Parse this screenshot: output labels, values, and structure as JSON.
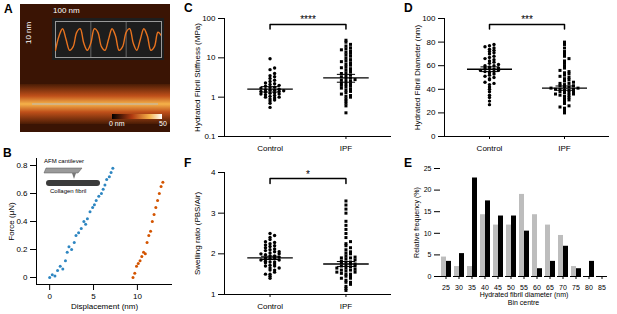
{
  "chart_data": [
    {
      "type": "image",
      "title": "A",
      "xlabel": "100 nm",
      "ylabel": "10 nm",
      "x": [
        0,
        10,
        20,
        30,
        40,
        50,
        60,
        70,
        80,
        90,
        100,
        110,
        120,
        130,
        140,
        150,
        160,
        170,
        180,
        190,
        200,
        210,
        220,
        230,
        240,
        250,
        260,
        270,
        280,
        290,
        300
      ],
      "values": [
        2,
        6,
        8,
        5,
        2,
        3,
        7,
        8,
        4,
        2,
        4,
        8,
        7,
        3,
        2,
        5,
        8,
        6,
        2,
        3,
        7,
        8,
        4,
        2,
        5,
        8,
        6,
        2,
        3,
        7,
        6
      ],
      "color": "#e8731f",
      "xlim": [
        0,
        300
      ],
      "ylim": [
        0,
        10
      ],
      "xticks": [
        0,
        100,
        200,
        300
      ],
      "yticks": [
        0,
        10
      ],
      "grid": true,
      "tick_labels": false,
      "colorbar": {
        "range": [
          0,
          50
        ],
        "ticks": [
          {
            "value": 0,
            "label": "0 nm"
          },
          50
        ]
      }
    },
    {
      "type": "scatter",
      "title": "B",
      "xlabel": "Displacement (nm)",
      "ylabel": "Force (μN)",
      "xlim": [
        -1.5,
        14
      ],
      "ylim": [
        -0.05,
        0.85
      ],
      "xticks": [
        0,
        5,
        10
      ],
      "yticks": [
        0,
        0.2,
        0.4,
        0.6,
        0.8
      ],
      "annotations": [
        "AFM cantilever",
        "Collagen fibril"
      ],
      "series": [
        {
          "color": "#2e86c1",
          "marker": "circle",
          "x": [
            0,
            0.3,
            0.6,
            0.9,
            1.2,
            1.5,
            1.8,
            2.0,
            2.2,
            2.5,
            2.8,
            3.0,
            3.3,
            3.6,
            3.9,
            4.1,
            4.3,
            4.6,
            4.9,
            5.1,
            5.3,
            5.6,
            5.9,
            6.1,
            6.3,
            6.5,
            6.8,
            7.0,
            7.2
          ],
          "values": [
            0.0,
            0.02,
            0.01,
            0.05,
            0.08,
            0.06,
            0.12,
            0.18,
            0.22,
            0.2,
            0.25,
            0.3,
            0.32,
            0.35,
            0.4,
            0.38,
            0.42,
            0.47,
            0.5,
            0.52,
            0.55,
            0.58,
            0.6,
            0.63,
            0.66,
            0.7,
            0.72,
            0.75,
            0.78
          ]
        },
        {
          "color": "#d35400",
          "marker": "circle",
          "x": [
            9.5,
            9.7,
            9.9,
            10.1,
            10.3,
            10.5,
            10.7,
            10.9,
            11.1,
            11.3,
            11.5,
            11.7,
            11.9,
            12.1,
            12.3,
            12.5,
            12.7,
            12.9
          ],
          "values": [
            0.0,
            0.03,
            0.08,
            0.1,
            0.12,
            0.15,
            0.18,
            0.17,
            0.25,
            0.3,
            0.33,
            0.4,
            0.45,
            0.5,
            0.55,
            0.6,
            0.65,
            0.68
          ]
        }
      ]
    },
    {
      "type": "strip",
      "title": "C",
      "ylabel": "Hydrated Fibril Stiffness (MPa)",
      "log": "y",
      "ylim": [
        0.1,
        100
      ],
      "yticks": [
        0.1,
        1,
        10,
        100
      ],
      "annotations": [
        "****"
      ],
      "series": [
        {
          "name": "Control",
          "marker": "circle",
          "color": "#000000",
          "mean": 1.6,
          "error": 0.25,
          "values": [
            0.55,
            0.7,
            0.8,
            0.85,
            0.9,
            0.95,
            1.0,
            1.0,
            1.05,
            1.1,
            1.15,
            1.2,
            1.2,
            1.25,
            1.3,
            1.35,
            1.4,
            1.4,
            1.45,
            1.5,
            1.5,
            1.55,
            1.6,
            1.7,
            1.75,
            1.8,
            1.9,
            2.0,
            2.1,
            2.2,
            2.3,
            2.5,
            2.7,
            3.0,
            3.3,
            3.5,
            4.0,
            5.0,
            5.5,
            9.5
          ]
        },
        {
          "name": "IPF",
          "marker": "square",
          "color": "#000000",
          "mean": 3.1,
          "error": 0.7,
          "values": [
            0.6,
            0.7,
            0.8,
            0.9,
            1.0,
            1.05,
            1.1,
            1.2,
            1.3,
            1.4,
            1.5,
            1.6,
            1.7,
            1.8,
            1.9,
            2.0,
            2.1,
            2.2,
            2.3,
            2.5,
            2.6,
            2.7,
            2.8,
            3.0,
            3.1,
            3.3,
            3.5,
            3.7,
            4.0,
            4.2,
            4.5,
            5.0,
            5.3,
            5.6,
            6.0,
            6.5,
            7.0,
            7.5,
            8.0,
            8.5,
            9.0,
            10,
            11,
            12,
            13,
            14,
            15,
            16,
            17,
            18,
            20,
            22,
            25,
            28,
            0.4
          ]
        }
      ]
    },
    {
      "type": "strip",
      "title": "D",
      "ylabel": "Hydrated Fibril Diameter (nm)",
      "ylim": [
        0,
        100
      ],
      "yticks": [
        0,
        20,
        40,
        60,
        80,
        100
      ],
      "annotations": [
        "***"
      ],
      "series": [
        {
          "name": "Control",
          "marker": "circle",
          "color": "#000000",
          "mean": 57,
          "error": 2,
          "values": [
            27,
            30,
            33,
            35,
            38,
            40,
            42,
            44,
            45,
            46,
            48,
            49,
            50,
            51,
            52,
            53,
            54,
            55,
            55,
            56,
            56,
            57,
            57,
            58,
            58,
            59,
            60,
            60,
            61,
            62,
            63,
            64,
            65,
            66,
            67,
            68,
            70,
            71,
            72,
            73,
            74,
            75,
            76,
            77,
            78
          ]
        },
        {
          "name": "IPF",
          "marker": "square",
          "color": "#000000",
          "mean": 41,
          "error": 1.8,
          "values": [
            20,
            22,
            24,
            26,
            28,
            30,
            31,
            32,
            33,
            34,
            35,
            35,
            36,
            36,
            37,
            37,
            38,
            38,
            39,
            39,
            40,
            40,
            40,
            41,
            41,
            42,
            42,
            43,
            43,
            44,
            45,
            45,
            46,
            47,
            48,
            49,
            50,
            51,
            52,
            53,
            54,
            55,
            56,
            58,
            60,
            62,
            64,
            66,
            68,
            70,
            72,
            75,
            78,
            80,
            25
          ]
        }
      ]
    },
    {
      "type": "strip",
      "title": "F",
      "ylabel": "Swelling ratio (PBS/Air)",
      "ylim": [
        1,
        4
      ],
      "yticks": [
        1,
        2,
        3,
        4
      ],
      "annotations": [
        "*"
      ],
      "series": [
        {
          "name": "Control",
          "marker": "circle",
          "color": "#000000",
          "mean": 1.9,
          "error": 0.04,
          "values": [
            1.4,
            1.45,
            1.5,
            1.55,
            1.6,
            1.6,
            1.65,
            1.7,
            1.7,
            1.72,
            1.75,
            1.78,
            1.8,
            1.8,
            1.82,
            1.85,
            1.85,
            1.88,
            1.9,
            1.9,
            1.92,
            1.95,
            1.95,
            1.98,
            2.0,
            2.0,
            2.02,
            2.05,
            2.08,
            2.1,
            2.12,
            2.15,
            2.18,
            2.2,
            2.22,
            2.25,
            2.28,
            2.3,
            2.35,
            2.4,
            2.45,
            2.5,
            1.5,
            1.65,
            2.05
          ]
        },
        {
          "name": "IPF",
          "marker": "square",
          "color": "#000000",
          "mean": 1.75,
          "error": 0.06,
          "values": [
            1.1,
            1.15,
            1.2,
            1.25,
            1.3,
            1.35,
            1.4,
            1.4,
            1.45,
            1.5,
            1.5,
            1.52,
            1.55,
            1.58,
            1.6,
            1.6,
            1.62,
            1.65,
            1.68,
            1.7,
            1.7,
            1.72,
            1.75,
            1.78,
            1.8,
            1.8,
            1.82,
            1.85,
            1.88,
            1.9,
            1.9,
            1.92,
            1.95,
            2.0,
            2.02,
            2.05,
            2.1,
            2.15,
            2.2,
            2.25,
            2.3,
            2.4,
            2.5,
            2.6,
            2.7,
            2.8,
            3.0,
            3.1,
            3.2,
            3.3,
            1.3,
            1.45,
            1.55,
            1.65,
            1.75
          ]
        }
      ]
    },
    {
      "type": "bar",
      "title": "E",
      "xlabel": "Hydrated fibril diameter (nm)",
      "ylabel": "Relative frequency (%)",
      "annotations": [
        "Bin centre"
      ],
      "categories": [
        25,
        30,
        35,
        40,
        45,
        50,
        55,
        60,
        65,
        70,
        75,
        80,
        85
      ],
      "ylim": [
        0,
        25
      ],
      "yticks": [
        0,
        5,
        10,
        15,
        20,
        25
      ],
      "series": [
        {
          "color": "#bdbdbd",
          "values": [
            4.5,
            2.3,
            2.3,
            14.3,
            11.9,
            11.9,
            19,
            14.3,
            11.9,
            9.5,
            2.3,
            0,
            0
          ]
        },
        {
          "color": "#000000",
          "values": [
            3.5,
            5.3,
            22.8,
            17.5,
            14,
            14,
            10.5,
            1.8,
            3.5,
            7,
            1.8,
            3.5,
            0
          ]
        }
      ]
    }
  ]
}
